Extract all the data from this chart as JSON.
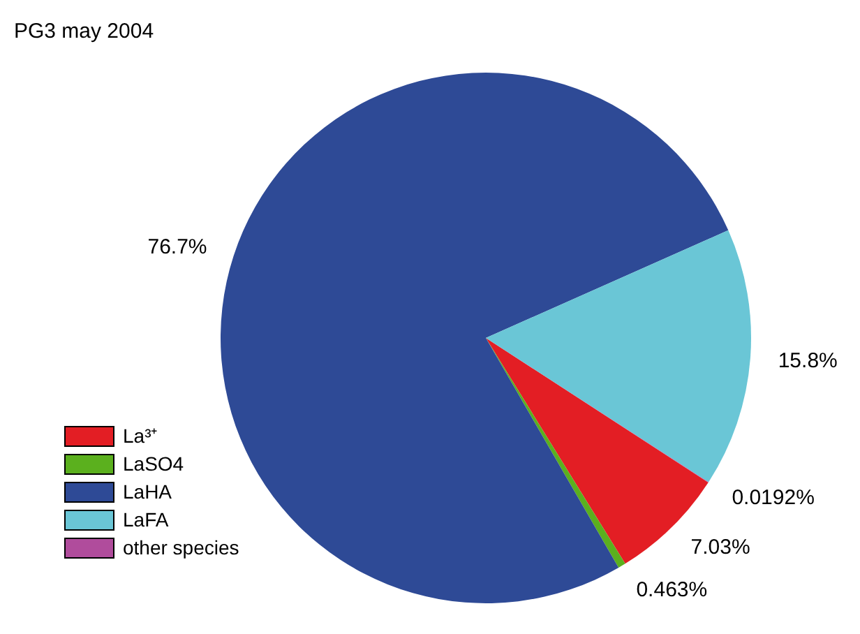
{
  "chart_data": {
    "type": "pie",
    "title": "PG3 may 2004",
    "categories": [
      "La³⁺",
      "LaSO4",
      "LaHA",
      "LaFA",
      "other species"
    ],
    "values": [
      7.03,
      0.463,
      76.7,
      15.8,
      0.0192
    ],
    "colors": [
      "#e31e24",
      "#5bb01e",
      "#2e4a96",
      "#6ac6d6",
      "#b04c9c"
    ],
    "value_labels": [
      "7.03%",
      "0.463%",
      "76.7%",
      "15.8%",
      "0.0192%"
    ],
    "legend": "bottom left"
  }
}
